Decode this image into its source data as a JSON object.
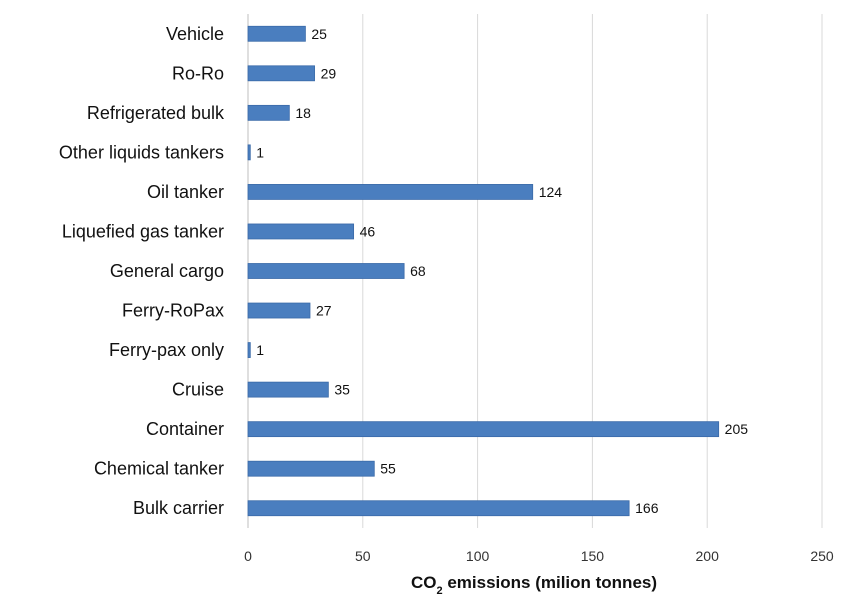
{
  "chart_data": {
    "type": "bar",
    "orientation": "horizontal",
    "categories": [
      "Vehicle",
      "Ro-Ro",
      "Refrigerated bulk",
      "Other liquids tankers",
      "Oil tanker",
      "Liquefied gas tanker",
      "General cargo",
      "Ferry-RoPax",
      "Ferry-pax only",
      "Cruise",
      "Container",
      "Chemical tanker",
      "Bulk carrier"
    ],
    "values": [
      25,
      29,
      18,
      1,
      124,
      46,
      68,
      27,
      1,
      35,
      205,
      55,
      166
    ],
    "data_labels": [
      "25",
      "29",
      "18",
      "1",
      "124",
      "46",
      "68",
      "27",
      "1",
      "35",
      "205",
      "55",
      "166"
    ],
    "xlabel_main": "CO",
    "xlabel_sub": "2",
    "xlabel_rest": " emissions (milion tonnes)",
    "xlim": [
      0,
      250
    ],
    "xticks": [
      0,
      50,
      100,
      150,
      200,
      250
    ],
    "xtick_labels": [
      "0",
      "50",
      "100",
      "150",
      "200",
      "250"
    ],
    "grid": "vertical",
    "legend": "none",
    "bar_color": "#4a7ebf",
    "bar_border_color": "#3a6aa8"
  }
}
